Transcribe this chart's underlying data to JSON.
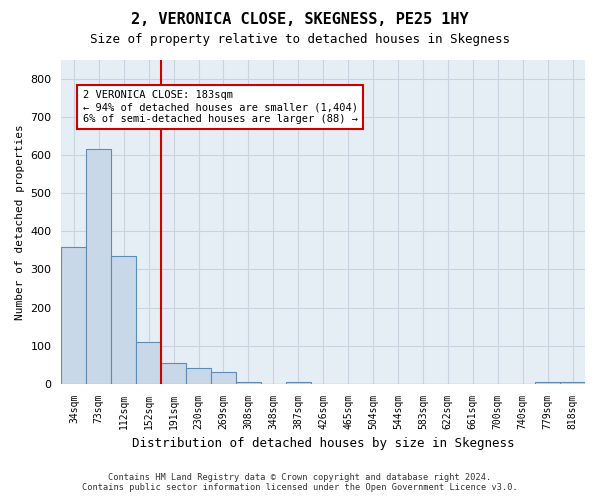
{
  "title": "2, VERONICA CLOSE, SKEGNESS, PE25 1HY",
  "subtitle": "Size of property relative to detached houses in Skegness",
  "xlabel": "Distribution of detached houses by size in Skegness",
  "ylabel": "Number of detached properties",
  "footer_line1": "Contains HM Land Registry data © Crown copyright and database right 2024.",
  "footer_line2": "Contains public sector information licensed under the Open Government Licence v3.0.",
  "bins": [
    "34sqm",
    "73sqm",
    "112sqm",
    "152sqm",
    "191sqm",
    "230sqm",
    "269sqm",
    "308sqm",
    "348sqm",
    "387sqm",
    "426sqm",
    "465sqm",
    "504sqm",
    "544sqm",
    "583sqm",
    "622sqm",
    "661sqm",
    "700sqm",
    "740sqm",
    "779sqm",
    "818sqm"
  ],
  "values": [
    360,
    615,
    335,
    110,
    55,
    40,
    30,
    5,
    0,
    5,
    0,
    0,
    0,
    0,
    0,
    0,
    0,
    0,
    0,
    5,
    5
  ],
  "bar_color": "#c8d8e8",
  "bar_edge_color": "#5b8db8",
  "grid_color": "#c8d4e0",
  "property_line_color": "#cc0000",
  "property_line_x": 3.5,
  "annotation_text": "2 VERONICA CLOSE: 183sqm\n← 94% of detached houses are smaller (1,404)\n6% of semi-detached houses are larger (88) →",
  "annotation_box_edgecolor": "#cc0000",
  "ylim": [
    0,
    850
  ],
  "yticks": [
    0,
    100,
    200,
    300,
    400,
    500,
    600,
    700,
    800
  ],
  "background_color": "#e6eef5"
}
